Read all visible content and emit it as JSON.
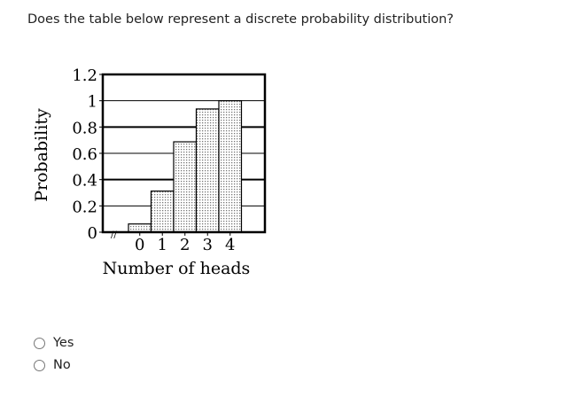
{
  "question": "Does the table below represent a discrete probability distribution?",
  "options": [
    "Yes",
    "No"
  ],
  "chart_data": {
    "type": "bar",
    "title": "",
    "xlabel": "Number of heads",
    "ylabel": "Probability",
    "categories": [
      "0",
      "1",
      "2",
      "3",
      "4"
    ],
    "values": [
      0.0625,
      0.3125,
      0.6875,
      0.9375,
      1.0
    ],
    "ylim": [
      0,
      1.2
    ],
    "yticks": [
      "0",
      "0.2",
      "0.4",
      "0.6",
      "0.8",
      "1",
      "1.2"
    ],
    "grid": true,
    "axis_break": true,
    "bar_fill": "dotted gray pattern"
  }
}
